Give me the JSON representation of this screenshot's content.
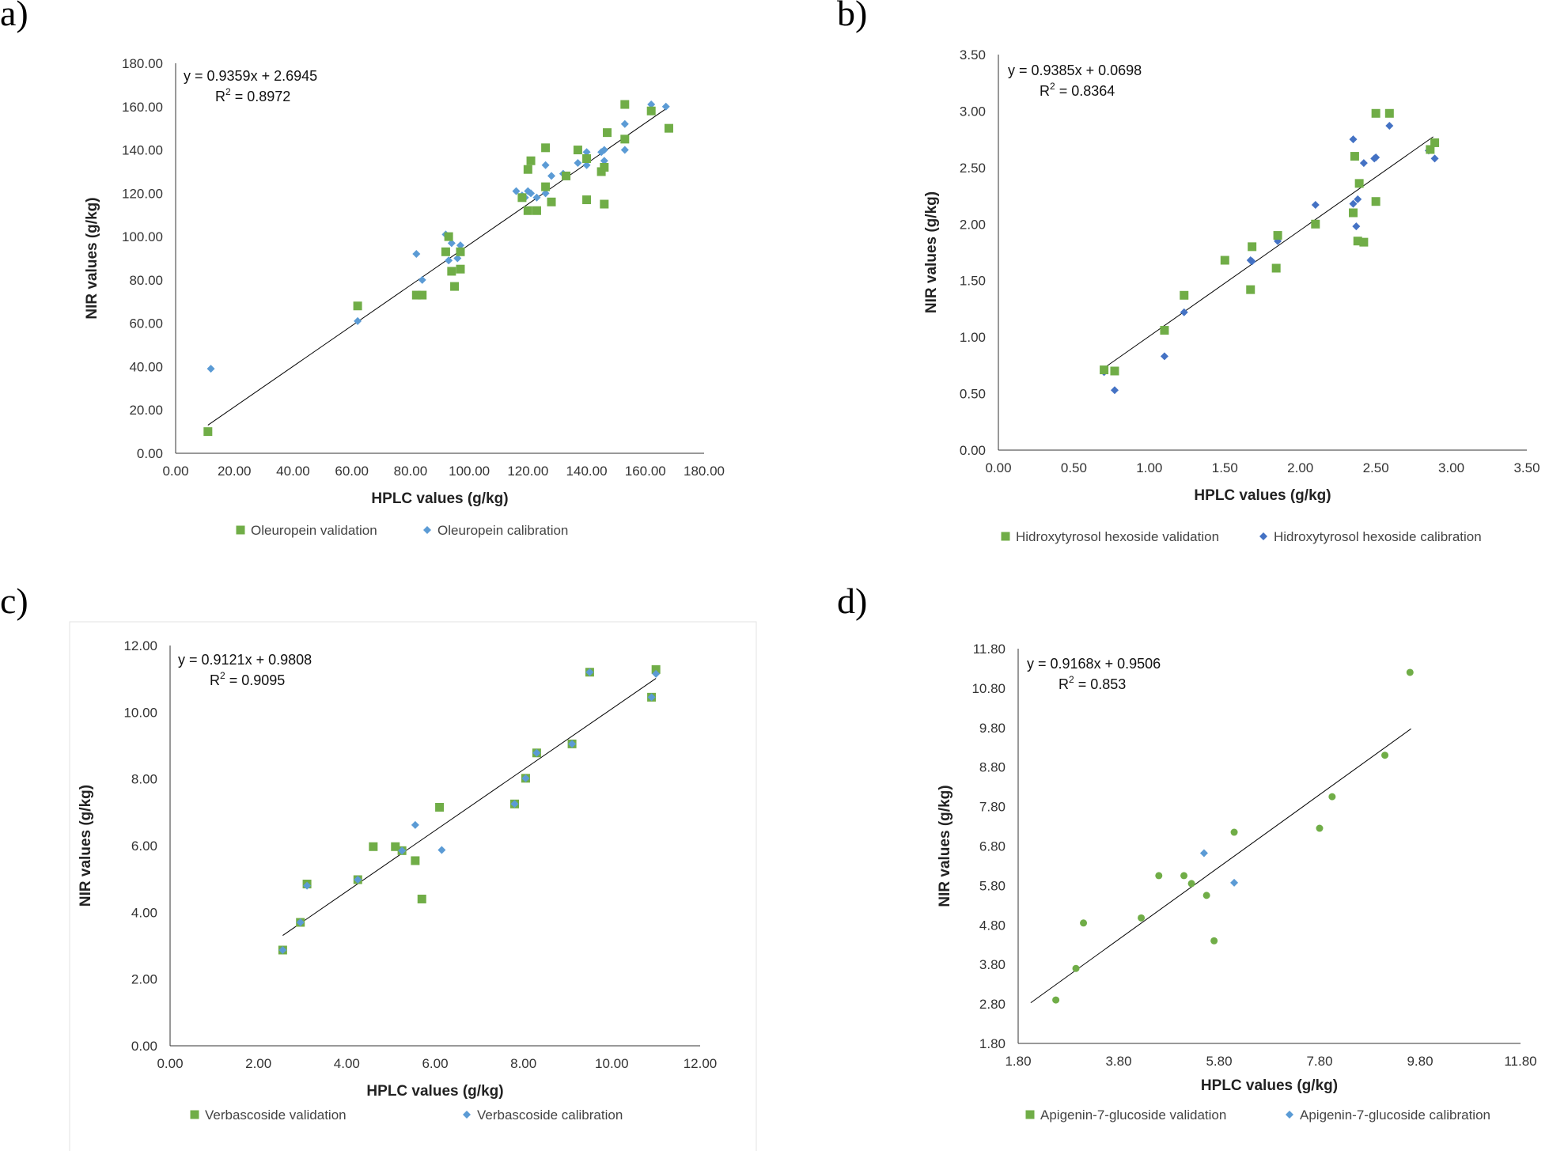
{
  "colors": {
    "validation": "#70ad47",
    "calibration": "#5b9bd5",
    "calibration_dark": "#4472c4",
    "trend": "#000000"
  },
  "panels": [
    {
      "letter": "a)",
      "equation": "y = 0.9359x + 2.6945",
      "r2_prefix": "R",
      "r2_exp": "2",
      "r2_value": " = 0.8972",
      "xlabel": "HPLC values (g/kg)",
      "ylabel": "NIR values (g/kg)",
      "xticks": [
        "0.00",
        "20.00",
        "40.00",
        "60.00",
        "80.00",
        "100.00",
        "120.00",
        "140.00",
        "160.00",
        "180.00"
      ],
      "yticks": [
        "0.00",
        "20.00",
        "40.00",
        "60.00",
        "80.00",
        "100.00",
        "120.00",
        "140.00",
        "160.00",
        "180.00"
      ],
      "legend": [
        "Oleuropein  validation",
        "Oleuropein calibration"
      ]
    },
    {
      "letter": "b)",
      "equation": "y = 0.9385x + 0.0698",
      "r2_prefix": "R",
      "r2_exp": "2",
      "r2_value": " = 0.8364",
      "xlabel": "HPLC values (g/kg)",
      "ylabel": "NIR values (g/kg)",
      "xticks": [
        "0.00",
        "0.50",
        "1.00",
        "1.50",
        "2.00",
        "2.50",
        "3.00",
        "3.50"
      ],
      "yticks": [
        "0.00",
        "0.50",
        "1.00",
        "1.50",
        "2.00",
        "2.50",
        "3.00",
        "3.50"
      ],
      "legend": [
        "Hidroxytyrosol hexoside validation",
        "Hidroxytyrosol hexoside calibration"
      ]
    },
    {
      "letter": "c)",
      "equation": "y = 0.9121x + 0.9808",
      "r2_prefix": "R",
      "r2_exp": "2",
      "r2_value": " = 0.9095",
      "xlabel": "HPLC values (g/kg)",
      "ylabel": "NIR values (g/kg)",
      "xticks": [
        "0.00",
        "2.00",
        "4.00",
        "6.00",
        "8.00",
        "10.00",
        "12.00"
      ],
      "yticks": [
        "0.00",
        "2.00",
        "4.00",
        "6.00",
        "8.00",
        "10.00",
        "12.00"
      ],
      "legend": [
        "Verbascoside validation",
        "Verbascoside calibration"
      ]
    },
    {
      "letter": "d)",
      "equation": "y = 0.9168x + 0.9506",
      "r2_prefix": "R",
      "r2_exp": "2",
      "r2_value": " = 0.853",
      "xlabel": "HPLC values (g/kg)",
      "ylabel": "NIR values (g/kg)",
      "xticks": [
        "1.80",
        "3.80",
        "5.80",
        "7.80",
        "9.80",
        "11.80"
      ],
      "yticks": [
        "1.80",
        "2.80",
        "3.80",
        "4.80",
        "5.80",
        "6.80",
        "7.80",
        "8.80",
        "9.80",
        "10.80",
        "11.80"
      ],
      "legend": [
        "Apigenin-7-glucoside validation",
        "Apigenin-7-glucoside calibration"
      ]
    }
  ],
  "chart_data": [
    {
      "type": "scatter",
      "title": "a)",
      "xlabel": "HPLC values (g/kg)",
      "ylabel": "NIR values (g/kg)",
      "xlim": [
        0,
        180
      ],
      "ylim": [
        0,
        180
      ],
      "trendline": {
        "slope": 0.9359,
        "intercept": 2.6945,
        "r2": 0.8972,
        "x_range": [
          11,
          167
        ]
      },
      "series": [
        {
          "name": "Oleuropein  validation",
          "marker": "square",
          "x": [
            11,
            62,
            82,
            84,
            92,
            93,
            94,
            95,
            97,
            97,
            118,
            120,
            120,
            121,
            123,
            126,
            126,
            128,
            133,
            137,
            140,
            140,
            145,
            146,
            146,
            147,
            153,
            153,
            162,
            168
          ],
          "y": [
            10,
            68,
            73,
            73,
            93,
            100,
            84,
            77,
            85,
            93,
            118,
            131,
            112,
            135,
            112,
            123,
            141,
            116,
            128,
            140,
            117,
            136,
            130,
            115,
            132,
            148,
            161,
            145,
            158,
            150
          ]
        },
        {
          "name": "Oleuropein calibration",
          "marker": "diamond",
          "x": [
            12,
            62,
            82,
            84,
            92,
            93,
            94,
            96,
            97,
            116,
            118,
            119,
            120,
            121,
            123,
            126,
            126,
            128,
            132,
            137,
            140,
            140,
            145,
            146,
            146,
            147,
            153,
            153,
            162,
            167
          ],
          "y": [
            39,
            61,
            92,
            80,
            101,
            89,
            97,
            90,
            96,
            121,
            119,
            118,
            121,
            120,
            118,
            133,
            120,
            128,
            129,
            134,
            139,
            133,
            139,
            140,
            135,
            148,
            140,
            152,
            161,
            160
          ]
        }
      ]
    },
    {
      "type": "scatter",
      "title": "b)",
      "xlabel": "HPLC values (g/kg)",
      "ylabel": "NIR values (g/kg)",
      "xlim": [
        0,
        3.5
      ],
      "ylim": [
        0,
        3.5
      ],
      "trendline": {
        "slope": 0.9385,
        "intercept": 0.0698,
        "r2": 0.8364,
        "x_range": [
          0.7,
          2.88
        ]
      },
      "series": [
        {
          "name": "Hidroxytyrosol hexoside validation",
          "marker": "square",
          "x": [
            0.7,
            0.77,
            1.1,
            1.23,
            1.5,
            1.67,
            1.68,
            1.84,
            1.85,
            2.1,
            2.35,
            2.36,
            2.38,
            2.39,
            2.42,
            2.5,
            2.5,
            2.59,
            2.86,
            2.89
          ],
          "y": [
            0.71,
            0.7,
            1.06,
            1.37,
            1.68,
            1.42,
            1.8,
            1.61,
            1.9,
            2.0,
            2.1,
            2.6,
            1.85,
            2.36,
            1.84,
            2.2,
            2.98,
            2.98,
            2.66,
            2.72
          ]
        },
        {
          "name": "Hidroxytyrosol hexoside calibration",
          "marker": "diamond",
          "x": [
            0.7,
            0.77,
            1.1,
            1.23,
            1.5,
            1.67,
            1.68,
            1.84,
            1.85,
            2.1,
            2.35,
            2.35,
            2.37,
            2.38,
            2.42,
            2.49,
            2.5,
            2.59,
            2.85,
            2.89
          ],
          "y": [
            0.69,
            0.53,
            0.83,
            1.22,
            1.68,
            1.68,
            1.67,
            1.61,
            1.85,
            2.17,
            2.18,
            2.75,
            1.98,
            2.22,
            2.54,
            2.58,
            2.59,
            2.87,
            2.65,
            2.58
          ]
        }
      ]
    },
    {
      "type": "scatter",
      "title": "c)",
      "xlabel": "HPLC values (g/kg)",
      "ylabel": "NIR values (g/kg)",
      "xlim": [
        0,
        12
      ],
      "ylim": [
        0,
        12
      ],
      "trendline": {
        "slope": 0.9121,
        "intercept": 0.9808,
        "r2": 0.9095,
        "x_range": [
          2.55,
          11.0
        ]
      },
      "series": [
        {
          "name": "Verbascoside validation",
          "marker": "square",
          "x": [
            2.55,
            2.95,
            3.1,
            4.25,
            4.6,
            5.1,
            5.25,
            5.55,
            5.7,
            6.1,
            7.8,
            8.05,
            8.3,
            9.1,
            9.5,
            10.9,
            11.0
          ],
          "y": [
            2.87,
            3.7,
            4.85,
            4.98,
            5.97,
            5.97,
            5.85,
            5.55,
            4.4,
            7.15,
            7.25,
            8.02,
            8.78,
            9.05,
            11.2,
            10.45,
            11.28
          ]
        },
        {
          "name": "Verbascoside calibration",
          "marker": "diamond",
          "x": [
            2.55,
            2.95,
            3.1,
            4.25,
            5.25,
            5.55,
            6.15,
            7.8,
            8.05,
            8.3,
            9.1,
            9.5,
            10.9,
            11.0
          ],
          "y": [
            2.87,
            3.7,
            4.8,
            4.98,
            5.85,
            6.62,
            5.87,
            7.25,
            8.02,
            8.78,
            9.05,
            11.2,
            10.45,
            11.15
          ]
        }
      ]
    },
    {
      "type": "scatter",
      "title": "d)",
      "xlabel": "HPLC values (g/kg)",
      "ylabel": "NIR values (g/kg)",
      "xlim": [
        1.8,
        11.8
      ],
      "ylim": [
        1.8,
        11.8
      ],
      "trendline": {
        "slope": 0.9168,
        "intercept": 0.9506,
        "r2": 0.853,
        "x_range": [
          2.05,
          9.62
        ]
      },
      "series": [
        {
          "name": "Apigenin-7-glucoside validation",
          "marker": "dot",
          "x": [
            2.55,
            2.95,
            3.1,
            4.25,
            4.6,
            5.1,
            5.25,
            5.55,
            5.7,
            6.1,
            7.8,
            8.05,
            9.1,
            9.6
          ],
          "y": [
            2.9,
            3.7,
            4.85,
            4.98,
            6.05,
            6.05,
            5.85,
            5.55,
            4.4,
            7.15,
            7.25,
            8.05,
            9.1,
            11.2
          ]
        },
        {
          "name": "Apigenin-7-glucoside calibration",
          "marker": "diamond",
          "x": [
            5.5,
            6.1
          ],
          "y": [
            6.62,
            5.87
          ]
        }
      ]
    }
  ]
}
